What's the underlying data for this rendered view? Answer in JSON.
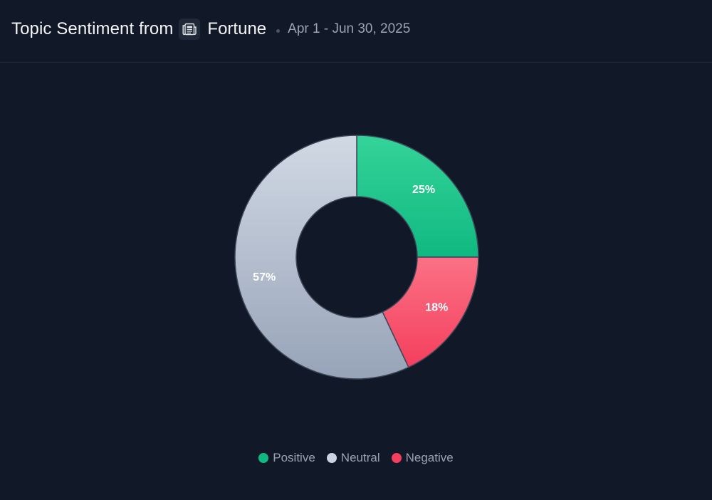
{
  "header": {
    "title": "Topic Sentiment from",
    "source_icon": "newspaper-icon",
    "source_name": "Fortune",
    "date_range": "Apr 1 - Jun 30, 2025"
  },
  "colors": {
    "positive_top": "#34d399",
    "positive_bottom": "#10b981",
    "neutral_top": "#d1d9e4",
    "neutral_bottom": "#97a3b8",
    "negative_top": "#fb7185",
    "negative_bottom": "#f43f5e",
    "slice_border": "#3b4656"
  },
  "chart_data": {
    "type": "pie",
    "variant": "donut",
    "slices": [
      {
        "name": "Positive",
        "value": 25,
        "label": "25%",
        "color": "#10b981"
      },
      {
        "name": "Negative",
        "value": 18,
        "label": "18%",
        "color": "#f43f5e"
      },
      {
        "name": "Neutral",
        "value": 57,
        "label": "57%",
        "color": "#b6c0cf"
      }
    ],
    "legend": {
      "placement": "bottom-center",
      "items": [
        {
          "name": "Positive",
          "color": "#10b981"
        },
        {
          "name": "Neutral",
          "color": "#cbd5e1"
        },
        {
          "name": "Negative",
          "color": "#f43f5e"
        }
      ]
    }
  }
}
